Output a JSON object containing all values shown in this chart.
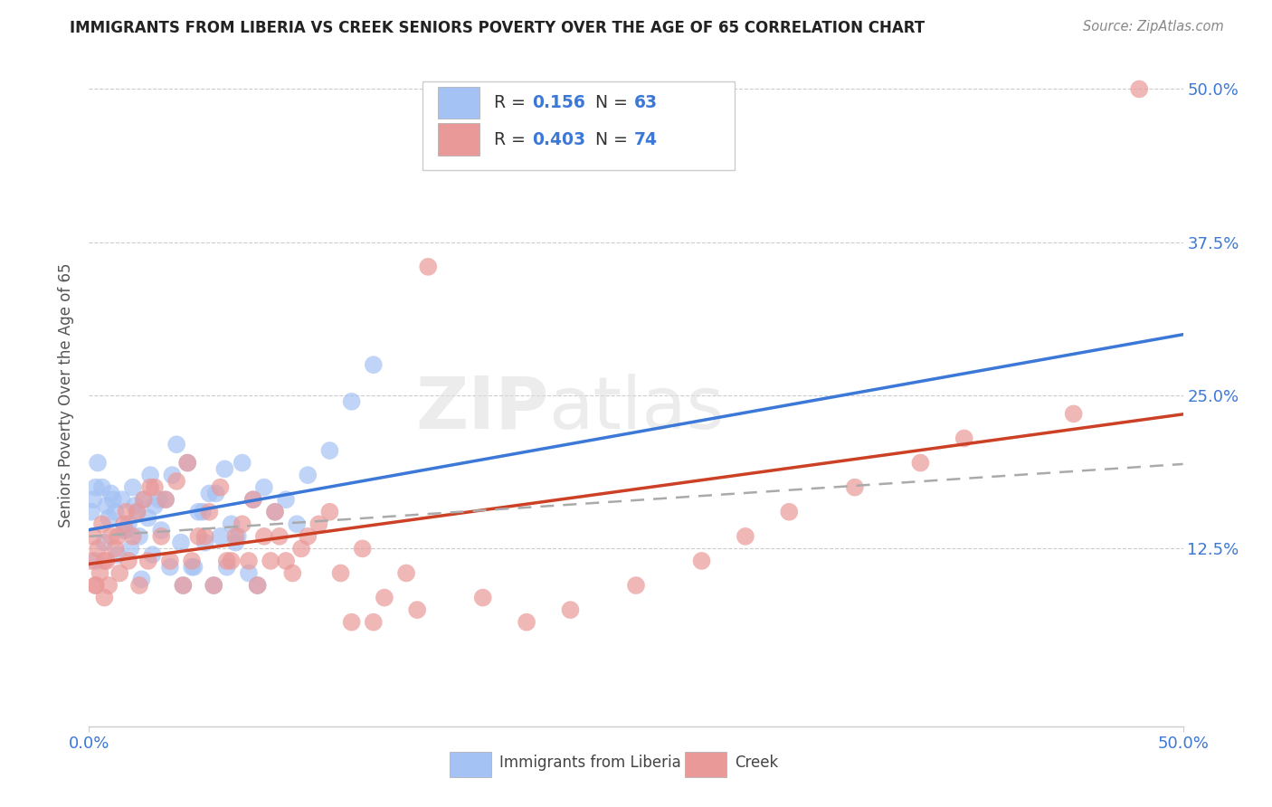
{
  "title": "IMMIGRANTS FROM LIBERIA VS CREEK SENIORS POVERTY OVER THE AGE OF 65 CORRELATION CHART",
  "source": "Source: ZipAtlas.com",
  "ylabel": "Seniors Poverty Over the Age of 65",
  "r_blue": 0.156,
  "n_blue": 63,
  "r_pink": 0.403,
  "n_pink": 74,
  "xlim": [
    0.0,
    0.5
  ],
  "ylim": [
    0.0,
    0.5
  ],
  "blue_color": "#a4c2f4",
  "pink_color": "#ea9999",
  "blue_line_color": "#3c78d8",
  "pink_line_color": "#cc4125",
  "dash_color": "#aaaaaa",
  "watermark_color": "#e8e8e8",
  "legend_label_blue": "Immigrants from Liberia",
  "legend_label_pink": "Creek",
  "blue_scatter_x": [
    0.004,
    0.003,
    0.002,
    0.001,
    0.006,
    0.008,
    0.01,
    0.012,
    0.015,
    0.018,
    0.02,
    0.022,
    0.025,
    0.028,
    0.03,
    0.035,
    0.04,
    0.045,
    0.05,
    0.055,
    0.06,
    0.065,
    0.07,
    0.075,
    0.08,
    0.085,
    0.09,
    0.095,
    0.1,
    0.11,
    0.12,
    0.13,
    0.016,
    0.019,
    0.023,
    0.027,
    0.032,
    0.038,
    0.042,
    0.048,
    0.052,
    0.058,
    0.062,
    0.068,
    0.003,
    0.007,
    0.009,
    0.011,
    0.013,
    0.017,
    0.021,
    0.024,
    0.029,
    0.033,
    0.037,
    0.043,
    0.047,
    0.053,
    0.057,
    0.063,
    0.067,
    0.073,
    0.077
  ],
  "blue_scatter_y": [
    0.195,
    0.175,
    0.165,
    0.155,
    0.175,
    0.16,
    0.17,
    0.155,
    0.165,
    0.145,
    0.175,
    0.155,
    0.165,
    0.185,
    0.16,
    0.165,
    0.21,
    0.195,
    0.155,
    0.17,
    0.135,
    0.145,
    0.195,
    0.165,
    0.175,
    0.155,
    0.165,
    0.145,
    0.185,
    0.205,
    0.245,
    0.275,
    0.14,
    0.125,
    0.135,
    0.15,
    0.165,
    0.185,
    0.13,
    0.11,
    0.155,
    0.17,
    0.19,
    0.135,
    0.115,
    0.13,
    0.15,
    0.165,
    0.12,
    0.14,
    0.16,
    0.1,
    0.12,
    0.14,
    0.11,
    0.095,
    0.11,
    0.13,
    0.095,
    0.11,
    0.13,
    0.105,
    0.095
  ],
  "pink_scatter_x": [
    0.001,
    0.002,
    0.003,
    0.004,
    0.005,
    0.006,
    0.007,
    0.008,
    0.009,
    0.01,
    0.012,
    0.014,
    0.016,
    0.018,
    0.02,
    0.022,
    0.025,
    0.028,
    0.03,
    0.035,
    0.04,
    0.045,
    0.05,
    0.055,
    0.06,
    0.065,
    0.07,
    0.075,
    0.08,
    0.085,
    0.09,
    0.1,
    0.11,
    0.12,
    0.13,
    0.15,
    0.18,
    0.2,
    0.22,
    0.25,
    0.28,
    0.3,
    0.32,
    0.35,
    0.38,
    0.4,
    0.45,
    0.48,
    0.003,
    0.007,
    0.013,
    0.017,
    0.023,
    0.027,
    0.033,
    0.037,
    0.043,
    0.047,
    0.053,
    0.057,
    0.063,
    0.067,
    0.073,
    0.077,
    0.083,
    0.087,
    0.093,
    0.097,
    0.105,
    0.115,
    0.125,
    0.135,
    0.145,
    0.155
  ],
  "pink_scatter_y": [
    0.115,
    0.135,
    0.095,
    0.125,
    0.105,
    0.145,
    0.085,
    0.115,
    0.095,
    0.135,
    0.125,
    0.105,
    0.145,
    0.115,
    0.135,
    0.155,
    0.165,
    0.175,
    0.175,
    0.165,
    0.18,
    0.195,
    0.135,
    0.155,
    0.175,
    0.115,
    0.145,
    0.165,
    0.135,
    0.155,
    0.115,
    0.135,
    0.155,
    0.065,
    0.065,
    0.075,
    0.085,
    0.065,
    0.075,
    0.095,
    0.115,
    0.135,
    0.155,
    0.175,
    0.195,
    0.215,
    0.235,
    0.5,
    0.095,
    0.115,
    0.135,
    0.155,
    0.095,
    0.115,
    0.135,
    0.115,
    0.095,
    0.115,
    0.135,
    0.095,
    0.115,
    0.135,
    0.115,
    0.095,
    0.115,
    0.135,
    0.105,
    0.125,
    0.145,
    0.105,
    0.125,
    0.085,
    0.105,
    0.355
  ]
}
